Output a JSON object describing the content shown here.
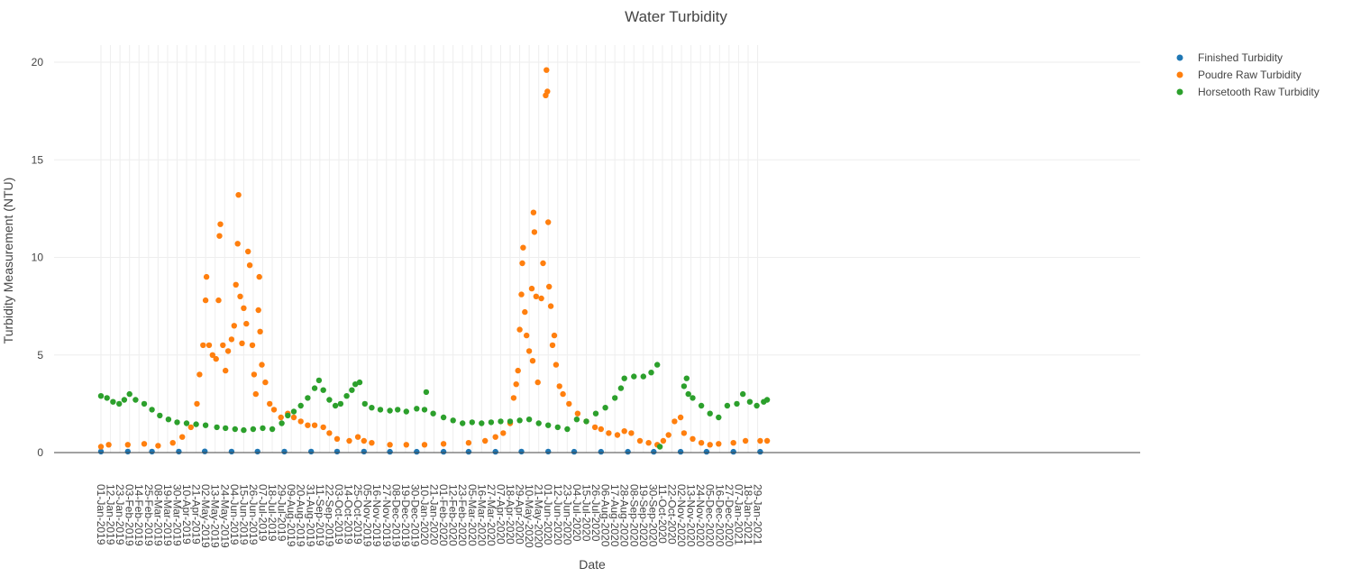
{
  "chart_data": {
    "type": "scatter",
    "title": "Water Turbidity",
    "xlabel": "Date",
    "ylabel": "Turbidity Measurement (NTU)",
    "x_range": [
      "2019-01-01",
      "2021-02-09"
    ],
    "ylim": [
      0,
      20
    ],
    "y_ticks": [
      0,
      5,
      10,
      15,
      20
    ],
    "grid": true,
    "legend_position": "top-right",
    "x_tick_labels": [
      "01-Jan-2019",
      "12-Jan-2019",
      "23-Jan-2019",
      "03-Feb-2019",
      "14-Feb-2019",
      "25-Feb-2019",
      "08-Mar-2019",
      "19-Mar-2019",
      "30-Mar-2019",
      "10-Apr-2019",
      "21-Apr-2019",
      "02-May-2019",
      "13-May-2019",
      "24-May-2019",
      "04-Jun-2019",
      "15-Jun-2019",
      "26-Jun-2019",
      "07-Jul-2019",
      "18-Jul-2019",
      "29-Jul-2019",
      "09-Aug-2019",
      "20-Aug-2019",
      "31-Aug-2019",
      "11-Sep-2019",
      "22-Sep-2019",
      "03-Oct-2019",
      "14-Oct-2019",
      "25-Oct-2019",
      "05-Nov-2019",
      "16-Nov-2019",
      "27-Nov-2019",
      "08-Dec-2019",
      "19-Dec-2019",
      "30-Dec-2019",
      "10-Jan-2020",
      "21-Jan-2020",
      "01-Feb-2020",
      "12-Feb-2020",
      "23-Feb-2020",
      "05-Mar-2020",
      "16-Mar-2020",
      "27-Mar-2020",
      "07-Apr-2020",
      "18-Apr-2020",
      "29-Apr-2020",
      "10-May-2020",
      "21-May-2020",
      "01-Jun-2020",
      "12-Jun-2020",
      "23-Jun-2020",
      "04-Jul-2020",
      "15-Jul-2020",
      "26-Jul-2020",
      "06-Aug-2020",
      "17-Aug-2020",
      "28-Aug-2020",
      "08-Sep-2020",
      "19-Sep-2020",
      "30-Sep-2020",
      "11-Oct-2020",
      "22-Oct-2020",
      "02-Nov-2020",
      "13-Nov-2020",
      "24-Nov-2020",
      "05-Dec-2020",
      "16-Dec-2020",
      "27-Dec-2020",
      "07-Jan-2021",
      "18-Jan-2021",
      "29-Jan-2021"
    ],
    "series": [
      {
        "name": "Finished Turbidity",
        "color": "#1f77b4",
        "points": [
          [
            "2019-01-01",
            0.05
          ],
          [
            "2019-02-01",
            0.05
          ],
          [
            "2019-03-01",
            0.05
          ],
          [
            "2019-04-01",
            0.05
          ],
          [
            "2019-05-01",
            0.06
          ],
          [
            "2019-06-01",
            0.05
          ],
          [
            "2019-07-01",
            0.05
          ],
          [
            "2019-08-01",
            0.05
          ],
          [
            "2019-09-01",
            0.05
          ],
          [
            "2019-10-01",
            0.05
          ],
          [
            "2019-11-01",
            0.05
          ],
          [
            "2019-12-01",
            0.04
          ],
          [
            "2020-01-01",
            0.04
          ],
          [
            "2020-02-01",
            0.04
          ],
          [
            "2020-03-01",
            0.04
          ],
          [
            "2020-04-01",
            0.04
          ],
          [
            "2020-05-01",
            0.05
          ],
          [
            "2020-06-01",
            0.05
          ],
          [
            "2020-07-01",
            0.04
          ],
          [
            "2020-08-01",
            0.04
          ],
          [
            "2020-09-01",
            0.04
          ],
          [
            "2020-10-01",
            0.04
          ],
          [
            "2020-11-01",
            0.04
          ],
          [
            "2020-12-01",
            0.04
          ],
          [
            "2021-01-01",
            0.04
          ],
          [
            "2021-02-01",
            0.04
          ]
        ]
      },
      {
        "name": "Poudre Raw Turbidity",
        "color": "#ff7f0e",
        "points": [
          [
            "2019-01-01",
            0.3
          ],
          [
            "2019-01-10",
            0.4
          ],
          [
            "2019-02-01",
            0.4
          ],
          [
            "2019-02-20",
            0.45
          ],
          [
            "2019-03-08",
            0.35
          ],
          [
            "2019-03-25",
            0.5
          ],
          [
            "2019-04-05",
            0.8
          ],
          [
            "2019-04-15",
            1.3
          ],
          [
            "2019-04-22",
            2.5
          ],
          [
            "2019-04-25",
            4.0
          ],
          [
            "2019-04-29",
            5.5
          ],
          [
            "2019-05-02",
            7.8
          ],
          [
            "2019-05-03",
            9.0
          ],
          [
            "2019-05-06",
            5.5
          ],
          [
            "2019-05-10",
            5.0
          ],
          [
            "2019-05-14",
            4.8
          ],
          [
            "2019-05-17",
            7.8
          ],
          [
            "2019-05-18",
            11.1
          ],
          [
            "2019-05-19",
            11.7
          ],
          [
            "2019-05-22",
            5.5
          ],
          [
            "2019-05-25",
            4.2
          ],
          [
            "2019-05-28",
            5.2
          ],
          [
            "2019-06-01",
            5.8
          ],
          [
            "2019-06-04",
            6.5
          ],
          [
            "2019-06-06",
            8.6
          ],
          [
            "2019-06-08",
            10.7
          ],
          [
            "2019-06-09",
            13.2
          ],
          [
            "2019-06-11",
            8.0
          ],
          [
            "2019-06-13",
            5.6
          ],
          [
            "2019-06-15",
            7.4
          ],
          [
            "2019-06-18",
            6.6
          ],
          [
            "2019-06-20",
            10.3
          ],
          [
            "2019-06-22",
            9.6
          ],
          [
            "2019-06-25",
            5.5
          ],
          [
            "2019-06-27",
            4.0
          ],
          [
            "2019-06-29",
            3.0
          ],
          [
            "2019-07-02",
            7.3
          ],
          [
            "2019-07-03",
            9.0
          ],
          [
            "2019-07-04",
            6.2
          ],
          [
            "2019-07-06",
            4.5
          ],
          [
            "2019-07-10",
            3.6
          ],
          [
            "2019-07-15",
            2.5
          ],
          [
            "2019-07-20",
            2.2
          ],
          [
            "2019-07-28",
            1.8
          ],
          [
            "2019-08-05",
            2.0
          ],
          [
            "2019-08-12",
            1.8
          ],
          [
            "2019-08-20",
            1.6
          ],
          [
            "2019-08-28",
            1.4
          ],
          [
            "2019-09-05",
            1.4
          ],
          [
            "2019-09-15",
            1.3
          ],
          [
            "2019-09-22",
            1.0
          ],
          [
            "2019-10-01",
            0.7
          ],
          [
            "2019-10-15",
            0.6
          ],
          [
            "2019-10-25",
            0.8
          ],
          [
            "2019-11-01",
            0.6
          ],
          [
            "2019-11-10",
            0.5
          ],
          [
            "2019-12-01",
            0.4
          ],
          [
            "2019-12-20",
            0.4
          ],
          [
            "2020-01-10",
            0.4
          ],
          [
            "2020-02-01",
            0.45
          ],
          [
            "2020-03-01",
            0.5
          ],
          [
            "2020-03-20",
            0.6
          ],
          [
            "2020-04-01",
            0.8
          ],
          [
            "2020-04-10",
            1.0
          ],
          [
            "2020-04-18",
            1.5
          ],
          [
            "2020-04-22",
            2.8
          ],
          [
            "2020-04-25",
            3.5
          ],
          [
            "2020-04-27",
            4.2
          ],
          [
            "2020-04-29",
            6.3
          ],
          [
            "2020-05-01",
            8.1
          ],
          [
            "2020-05-02",
            9.7
          ],
          [
            "2020-05-03",
            10.5
          ],
          [
            "2020-05-05",
            7.2
          ],
          [
            "2020-05-07",
            6.0
          ],
          [
            "2020-05-10",
            5.2
          ],
          [
            "2020-05-13",
            8.4
          ],
          [
            "2020-05-14",
            4.7
          ],
          [
            "2020-05-15",
            12.3
          ],
          [
            "2020-05-16",
            11.3
          ],
          [
            "2020-05-18",
            8.0
          ],
          [
            "2020-05-20",
            3.6
          ],
          [
            "2020-05-24",
            7.9
          ],
          [
            "2020-05-26",
            9.7
          ],
          [
            "2020-05-29",
            18.3
          ],
          [
            "2020-05-30",
            19.6
          ],
          [
            "2020-05-31",
            18.5
          ],
          [
            "2020-06-01",
            11.8
          ],
          [
            "2020-06-02",
            8.5
          ],
          [
            "2020-06-04",
            7.5
          ],
          [
            "2020-06-06",
            5.5
          ],
          [
            "2020-06-08",
            6.0
          ],
          [
            "2020-06-10",
            4.5
          ],
          [
            "2020-06-14",
            3.4
          ],
          [
            "2020-06-18",
            3.0
          ],
          [
            "2020-06-25",
            2.5
          ],
          [
            "2020-07-05",
            2.0
          ],
          [
            "2020-07-15",
            1.6
          ],
          [
            "2020-07-25",
            1.3
          ],
          [
            "2020-08-01",
            1.2
          ],
          [
            "2020-08-10",
            1.0
          ],
          [
            "2020-08-20",
            0.9
          ],
          [
            "2020-08-28",
            1.1
          ],
          [
            "2020-09-05",
            1.0
          ],
          [
            "2020-09-15",
            0.6
          ],
          [
            "2020-09-25",
            0.5
          ],
          [
            "2020-10-05",
            0.4
          ],
          [
            "2020-10-12",
            0.6
          ],
          [
            "2020-10-18",
            0.9
          ],
          [
            "2020-10-25",
            1.6
          ],
          [
            "2020-11-01",
            1.8
          ],
          [
            "2020-11-05",
            1.0
          ],
          [
            "2020-11-15",
            0.7
          ],
          [
            "2020-11-25",
            0.5
          ],
          [
            "2020-12-05",
            0.4
          ],
          [
            "2020-12-15",
            0.45
          ],
          [
            "2021-01-01",
            0.5
          ],
          [
            "2021-01-15",
            0.6
          ],
          [
            "2021-02-01",
            0.6
          ],
          [
            "2021-02-09",
            0.6
          ]
        ]
      },
      {
        "name": "Horsetooth Raw Turbidity",
        "color": "#2ca02c",
        "points": [
          [
            "2019-01-01",
            2.9
          ],
          [
            "2019-01-08",
            2.8
          ],
          [
            "2019-01-15",
            2.6
          ],
          [
            "2019-01-22",
            2.5
          ],
          [
            "2019-01-28",
            2.7
          ],
          [
            "2019-02-03",
            3.0
          ],
          [
            "2019-02-10",
            2.7
          ],
          [
            "2019-02-20",
            2.5
          ],
          [
            "2019-03-01",
            2.2
          ],
          [
            "2019-03-10",
            1.9
          ],
          [
            "2019-03-20",
            1.7
          ],
          [
            "2019-03-30",
            1.55
          ],
          [
            "2019-04-10",
            1.5
          ],
          [
            "2019-04-21",
            1.45
          ],
          [
            "2019-05-02",
            1.4
          ],
          [
            "2019-05-15",
            1.3
          ],
          [
            "2019-05-25",
            1.25
          ],
          [
            "2019-06-05",
            1.2
          ],
          [
            "2019-06-15",
            1.15
          ],
          [
            "2019-06-26",
            1.2
          ],
          [
            "2019-07-07",
            1.25
          ],
          [
            "2019-07-18",
            1.2
          ],
          [
            "2019-07-29",
            1.5
          ],
          [
            "2019-08-05",
            1.9
          ],
          [
            "2019-08-12",
            2.1
          ],
          [
            "2019-08-20",
            2.4
          ],
          [
            "2019-08-28",
            2.8
          ],
          [
            "2019-09-05",
            3.3
          ],
          [
            "2019-09-10",
            3.7
          ],
          [
            "2019-09-15",
            3.2
          ],
          [
            "2019-09-22",
            2.7
          ],
          [
            "2019-09-29",
            2.4
          ],
          [
            "2019-10-05",
            2.5
          ],
          [
            "2019-10-12",
            2.9
          ],
          [
            "2019-10-18",
            3.2
          ],
          [
            "2019-10-22",
            3.5
          ],
          [
            "2019-10-27",
            3.6
          ],
          [
            "2019-11-02",
            2.5
          ],
          [
            "2019-11-10",
            2.3
          ],
          [
            "2019-11-20",
            2.2
          ],
          [
            "2019-12-01",
            2.15
          ],
          [
            "2019-12-10",
            2.2
          ],
          [
            "2019-12-20",
            2.1
          ],
          [
            "2020-01-01",
            2.25
          ],
          [
            "2020-01-10",
            2.2
          ],
          [
            "2020-01-12",
            3.1
          ],
          [
            "2020-01-20",
            2.0
          ],
          [
            "2020-02-01",
            1.8
          ],
          [
            "2020-02-12",
            1.65
          ],
          [
            "2020-02-23",
            1.5
          ],
          [
            "2020-03-05",
            1.55
          ],
          [
            "2020-03-16",
            1.5
          ],
          [
            "2020-03-27",
            1.55
          ],
          [
            "2020-04-07",
            1.6
          ],
          [
            "2020-04-18",
            1.6
          ],
          [
            "2020-04-29",
            1.65
          ],
          [
            "2020-05-10",
            1.7
          ],
          [
            "2020-05-21",
            1.5
          ],
          [
            "2020-06-01",
            1.4
          ],
          [
            "2020-06-12",
            1.3
          ],
          [
            "2020-06-23",
            1.2
          ],
          [
            "2020-07-04",
            1.7
          ],
          [
            "2020-07-15",
            1.6
          ],
          [
            "2020-07-26",
            2.0
          ],
          [
            "2020-08-06",
            2.3
          ],
          [
            "2020-08-17",
            2.8
          ],
          [
            "2020-08-24",
            3.3
          ],
          [
            "2020-08-28",
            3.8
          ],
          [
            "2020-09-08",
            3.9
          ],
          [
            "2020-09-19",
            3.9
          ],
          [
            "2020-09-28",
            4.1
          ],
          [
            "2020-10-05",
            4.5
          ],
          [
            "2020-10-08",
            0.3
          ],
          [
            "2020-11-05",
            3.4
          ],
          [
            "2020-11-08",
            3.8
          ],
          [
            "2020-11-10",
            3.0
          ],
          [
            "2020-11-15",
            2.8
          ],
          [
            "2020-11-25",
            2.4
          ],
          [
            "2020-12-05",
            2.0
          ],
          [
            "2020-12-15",
            1.8
          ],
          [
            "2020-12-25",
            2.4
          ],
          [
            "2021-01-05",
            2.5
          ],
          [
            "2021-01-12",
            3.0
          ],
          [
            "2021-01-20",
            2.6
          ],
          [
            "2021-01-28",
            2.4
          ],
          [
            "2021-02-05",
            2.6
          ],
          [
            "2021-02-09",
            2.7
          ]
        ]
      }
    ]
  }
}
